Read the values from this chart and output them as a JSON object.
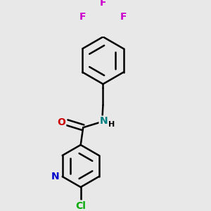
{
  "bg_color": "#e8e8e8",
  "bond_color": "#000000",
  "atom_colors": {
    "N_pyridine": "#0000cc",
    "N_amide": "#008080",
    "O": "#cc0000",
    "Cl": "#00aa00",
    "F": "#cc00cc",
    "C": "#000000"
  },
  "bond_width": 1.8,
  "font_size_atoms": 10,
  "font_size_small": 8,
  "xlim": [
    0.2,
    2.8
  ],
  "ylim": [
    0.1,
    2.9
  ]
}
